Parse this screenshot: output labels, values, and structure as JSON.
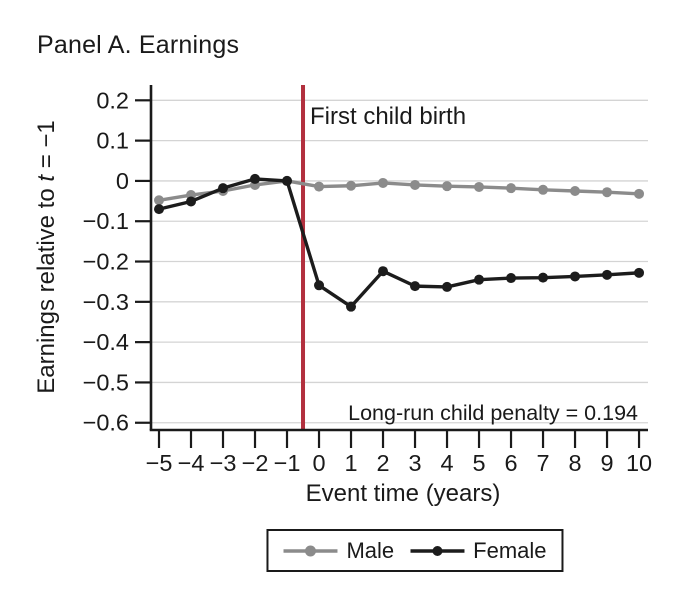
{
  "title": "Panel A. Earnings",
  "chart_data": {
    "type": "line",
    "x": [
      -5,
      -4,
      -3,
      -2,
      -1,
      0,
      1,
      2,
      3,
      4,
      5,
      6,
      7,
      8,
      9,
      10
    ],
    "series": [
      {
        "name": "Male",
        "color": "#8b8b8b",
        "values": [
          -0.048,
          -0.035,
          -0.025,
          -0.01,
          0.0,
          -0.014,
          -0.012,
          -0.005,
          -0.01,
          -0.013,
          -0.015,
          -0.018,
          -0.022,
          -0.025,
          -0.028,
          -0.032
        ]
      },
      {
        "name": "Female",
        "color": "#1c1c1c",
        "values": [
          -0.07,
          -0.051,
          -0.018,
          0.005,
          0.0,
          -0.259,
          -0.312,
          -0.224,
          -0.261,
          -0.263,
          -0.245,
          -0.241,
          -0.24,
          -0.237,
          -0.233,
          -0.228
        ]
      }
    ],
    "xlabel": "Event time (years)",
    "ylabel": {
      "pre": "Earnings relative to ",
      "var": "t",
      "post": " = −1"
    },
    "xlim": [
      -5.25,
      10.28
    ],
    "ylim": [
      -0.618,
      0.238
    ],
    "xticks": {
      "values": [
        -5,
        -4,
        -3,
        -2,
        -1,
        0,
        1,
        2,
        3,
        4,
        5,
        6,
        7,
        8,
        9,
        10
      ],
      "labels": [
        "−5",
        "−4",
        "−3",
        "−2",
        "−1",
        "0",
        "1",
        "2",
        "3",
        "4",
        "5",
        "6",
        "7",
        "8",
        "9",
        "10"
      ]
    },
    "yticks": {
      "values": [
        0.2,
        0.1,
        0,
        -0.1,
        -0.2,
        -0.3,
        -0.4,
        -0.5,
        -0.6
      ],
      "labels": [
        "0.2",
        "0.1",
        "0",
        "−0.1",
        "−0.2",
        "−0.3",
        "−0.4",
        "−0.5",
        "−0.6"
      ]
    },
    "grid": true,
    "legend_position": "bottom-center",
    "vline": {
      "x": -0.5,
      "color": "#b2303e",
      "label": "First child birth"
    },
    "annotation": "Long-run child penalty = 0.194"
  },
  "colors": {
    "background": "#ffffff",
    "grid": "#d4d4d4",
    "axis": "#1a1a1a",
    "text": "#1a1a1a",
    "event_line": "#b2303e"
  }
}
